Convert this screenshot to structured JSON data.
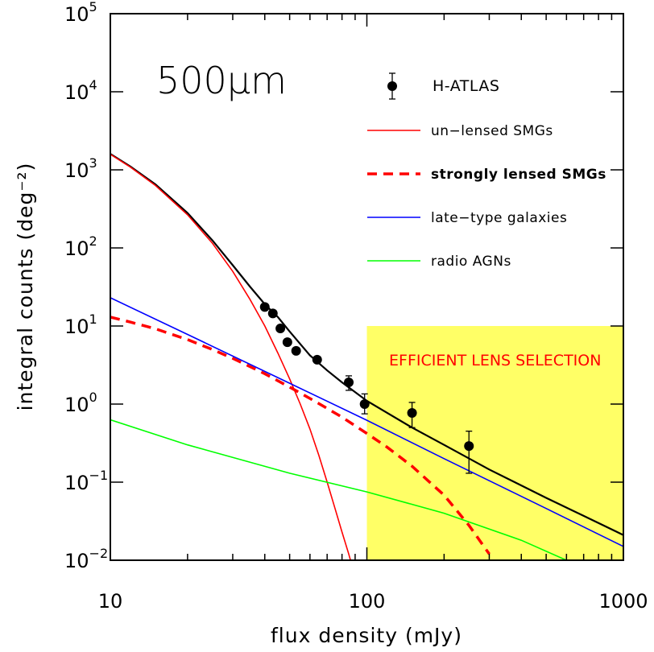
{
  "chart_data": {
    "type": "line",
    "xscale": "log",
    "yscale": "log",
    "xlim": [
      10,
      1000
    ],
    "ylim": [
      0.01,
      100000
    ],
    "xlabel": "flux density (mJy)",
    "ylabel": "integral counts (deg⁻²)",
    "panel_label": "500μm",
    "x_ticks": [
      {
        "value": 10,
        "label": "10"
      },
      {
        "value": 100,
        "label": "100"
      },
      {
        "value": 1000,
        "label": "1000"
      }
    ],
    "y_ticks": [
      {
        "value": 0.01,
        "base": "10",
        "exp": "−2"
      },
      {
        "value": 0.1,
        "base": "10",
        "exp": "−1"
      },
      {
        "value": 1,
        "base": "10",
        "exp": "0"
      },
      {
        "value": 10,
        "base": "10",
        "exp": "1"
      },
      {
        "value": 100,
        "base": "10",
        "exp": "2"
      },
      {
        "value": 1000,
        "base": "10",
        "exp": "3"
      },
      {
        "value": 10000,
        "base": "10",
        "exp": "4"
      },
      {
        "value": 100000,
        "base": "10",
        "exp": "5"
      }
    ],
    "shaded_region": {
      "x": [
        100,
        1000
      ],
      "y": [
        0.01,
        10
      ],
      "color": "#ffff66",
      "label": "EFFICIENT LENS SELECTION",
      "label_color": "#ff0000"
    },
    "legend": {
      "position": "top-right",
      "entries": [
        {
          "label": "H-ATLAS",
          "marker": "circle-errorbar",
          "color": "#000000"
        },
        {
          "label": "un−lensed SMGs",
          "style": "solid",
          "color": "#ff0000"
        },
        {
          "label": "strongly lensed SMGs",
          "style": "dashed",
          "color": "#ff0000"
        },
        {
          "label": "late−type galaxies",
          "style": "solid",
          "color": "#0000ff"
        },
        {
          "label": "radio AGNs",
          "style": "solid",
          "color": "#00ff00"
        }
      ]
    },
    "points": {
      "name": "H-ATLAS",
      "color": "#000000",
      "data": [
        {
          "x": 40,
          "y": 17.5,
          "ylo": 17.5,
          "yhi": 17.5
        },
        {
          "x": 43,
          "y": 14.5,
          "ylo": 14.5,
          "yhi": 14.5
        },
        {
          "x": 46,
          "y": 9.3,
          "ylo": 9.3,
          "yhi": 9.3
        },
        {
          "x": 49,
          "y": 6.2,
          "ylo": 6.2,
          "yhi": 6.2
        },
        {
          "x": 53,
          "y": 4.8,
          "ylo": 4.8,
          "yhi": 4.8
        },
        {
          "x": 64,
          "y": 3.7,
          "ylo": 3.7,
          "yhi": 3.7
        },
        {
          "x": 85,
          "y": 1.9,
          "ylo": 1.5,
          "yhi": 2.3
        },
        {
          "x": 98,
          "y": 1.0,
          "ylo": 0.75,
          "yhi": 1.35
        },
        {
          "x": 150,
          "y": 0.77,
          "ylo": 0.5,
          "yhi": 1.05
        },
        {
          "x": 250,
          "y": 0.29,
          "ylo": 0.13,
          "yhi": 0.45
        }
      ]
    },
    "series": [
      {
        "key": "total",
        "color": "#000000",
        "style": "solid",
        "x": [
          10,
          12,
          15,
          20,
          25,
          30,
          35,
          40,
          45,
          50,
          60,
          70,
          80,
          100,
          150,
          200,
          300,
          500,
          700,
          1000
        ],
        "y": [
          1600,
          1100,
          650,
          280,
          125,
          60,
          32,
          19,
          13,
          8.5,
          4.2,
          2.7,
          1.9,
          1.1,
          0.5,
          0.3,
          0.145,
          0.063,
          0.037,
          0.021
        ]
      },
      {
        "name": "un−lensed SMGs",
        "color": "#ff0000",
        "style": "solid",
        "x": [
          10,
          12,
          15,
          20,
          25,
          30,
          35,
          40,
          45,
          50,
          55,
          60,
          65,
          70,
          75,
          80,
          85,
          88
        ],
        "y": [
          1580,
          1080,
          630,
          265,
          115,
          50,
          22,
          10,
          4.5,
          2.1,
          1.0,
          0.48,
          0.22,
          0.1,
          0.047,
          0.023,
          0.012,
          0.008
        ]
      },
      {
        "name": "strongly lensed SMGs",
        "color": "#ff0000",
        "style": "dashed",
        "x": [
          10,
          12,
          15,
          20,
          25,
          30,
          40,
          50,
          60,
          70,
          80,
          100,
          120,
          150,
          200,
          250,
          300
        ],
        "y": [
          13,
          11.2,
          9.2,
          6.7,
          5.0,
          3.85,
          2.45,
          1.65,
          1.18,
          0.88,
          0.68,
          0.42,
          0.28,
          0.16,
          0.068,
          0.028,
          0.012
        ]
      },
      {
        "name": "late−type galaxies",
        "color": "#0000ff",
        "style": "solid",
        "x": [
          10,
          20,
          50,
          100,
          200,
          500,
          1000
        ],
        "y": [
          23,
          7.8,
          1.85,
          0.62,
          0.2,
          0.046,
          0.015
        ]
      },
      {
        "name": "radio AGNs",
        "color": "#00ff00",
        "style": "solid",
        "x": [
          10,
          20,
          50,
          100,
          200,
          400,
          600
        ],
        "y": [
          0.63,
          0.3,
          0.13,
          0.075,
          0.04,
          0.018,
          0.01
        ]
      }
    ]
  }
}
